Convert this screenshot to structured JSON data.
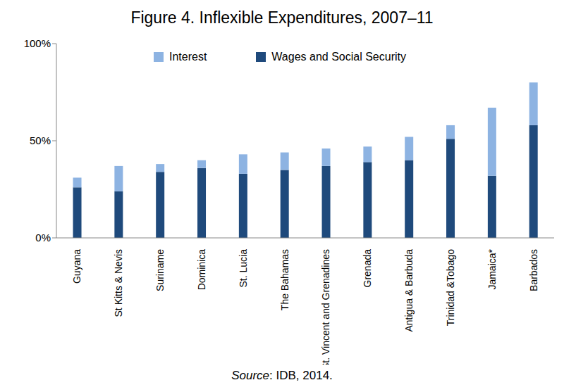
{
  "chart_data": {
    "type": "bar",
    "title": "Figure 4. Inflexible Expenditures, 2007–11",
    "source": "Source: IDB, 2014.",
    "categories": [
      "Guyana",
      "St Kitts & Nevis",
      "Suriname",
      "Dominica",
      "St. Lucia",
      "The Bahamas",
      "St. Vincent and Grenadines",
      "Grenada",
      "Antigua & Barbuda",
      "Trinidad &Tobago",
      "Jamaica*",
      "Barbados"
    ],
    "series": [
      {
        "name": "Wages and Social Security",
        "color": "#1F4A7C",
        "values": [
          26,
          24,
          34,
          36,
          33,
          35,
          37,
          39,
          40,
          51,
          32,
          58
        ]
      },
      {
        "name": "Interest",
        "color": "#8DB3E2",
        "values": [
          5,
          13,
          4,
          4,
          10,
          9,
          9,
          8,
          12,
          7,
          35,
          22
        ]
      }
    ],
    "stacked": true,
    "ylim": [
      0,
      100
    ],
    "yticks": [
      {
        "value": 0,
        "label": "0%"
      },
      {
        "value": 50,
        "label": "50%"
      },
      {
        "value": 100,
        "label": "100%"
      }
    ],
    "grid": false,
    "legend": "top"
  }
}
